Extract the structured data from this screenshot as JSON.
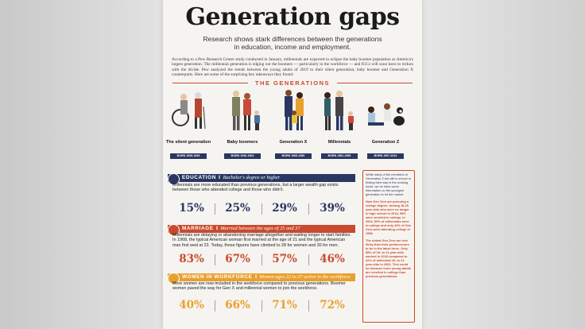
{
  "header": {
    "title": "Generation gaps",
    "subtitle": "Research shows stark differences between the generations in education, income and employment.",
    "intro": "According to a Pew Research Center study conducted in January, millennials are expected to eclipse the baby boomer population as America's largest generation. The millennial generation is edging out the boomers — particularly in the workforce — and IGCs will soon have to reckon with the divide. Pew analyzed the trends between the young adults of 2019 to their silent generation, baby boomer and Generation X counterparts. Here are some of the surprising key takeaways they found:"
  },
  "generations": {
    "heading": "THE GENERATIONS",
    "items": [
      {
        "name": "The silent generation",
        "born": "BORN 1928-1945"
      },
      {
        "name": "Baby boomers",
        "born": "BORN 1946-1964"
      },
      {
        "name": "Generation X",
        "born": "BORN 1965-1980"
      },
      {
        "name": "Millennials",
        "born": "BORN 1981-1996"
      },
      {
        "name": "Generation Z",
        "born": "BORN 1997-2012"
      }
    ]
  },
  "sections": [
    {
      "title": "EDUCATION",
      "subtitle": "Bachelor's degree or higher",
      "text": "Millennials are more educated than previous generations, but a larger wealth gap exists between those who attended college and those who didn't.",
      "stats": [
        "15%",
        "25%",
        "29%",
        "39%"
      ]
    },
    {
      "title": "MARRIAGE",
      "subtitle": "Married between the ages of 25 and 37",
      "text": "Millennials are delaying or abandoning marriage altogether and waiting longer to start families. In 1968, the typical American woman first married at the age of 21 and the typical American man first wed at 23. Today, those figures have climbed to 28 for women and 30 for men.",
      "stats": [
        "83%",
        "67%",
        "57%",
        "46%"
      ]
    },
    {
      "title": "WOMEN IN WORKFORCE",
      "subtitle": "Women ages 22 to 37 active in the workforce",
      "text": "More women are now included in the workforce compared to previous generations. Boomer women paved the way for Gen X and millennial women to join the workforce.",
      "stats": [
        "40%",
        "66%",
        "71%",
        "72%"
      ]
    }
  ],
  "sidebar": [
    "While many of the members of Generation Z are still in school or finding their way in the working world, we do have some information on the youngest generation to hit the market.",
    "How Gen Zers are pursuing a college degree: Among 18-20 year olds who were no longer in high school in 2018, 59% were enrolled in college. In 2003, 53% of millennials were in college and only 44% of Gen Xers were attending college in 1986.",
    "The oldest Gen Zers are less likely than their predecessors to be in the labor force. Only 58% of 18- to 21-year-olds worked in 2018 compared to 62% of millennial 18- to 21-year-olds in 2002. This could be because more young adults are enrolled in college than previous generations."
  ]
}
